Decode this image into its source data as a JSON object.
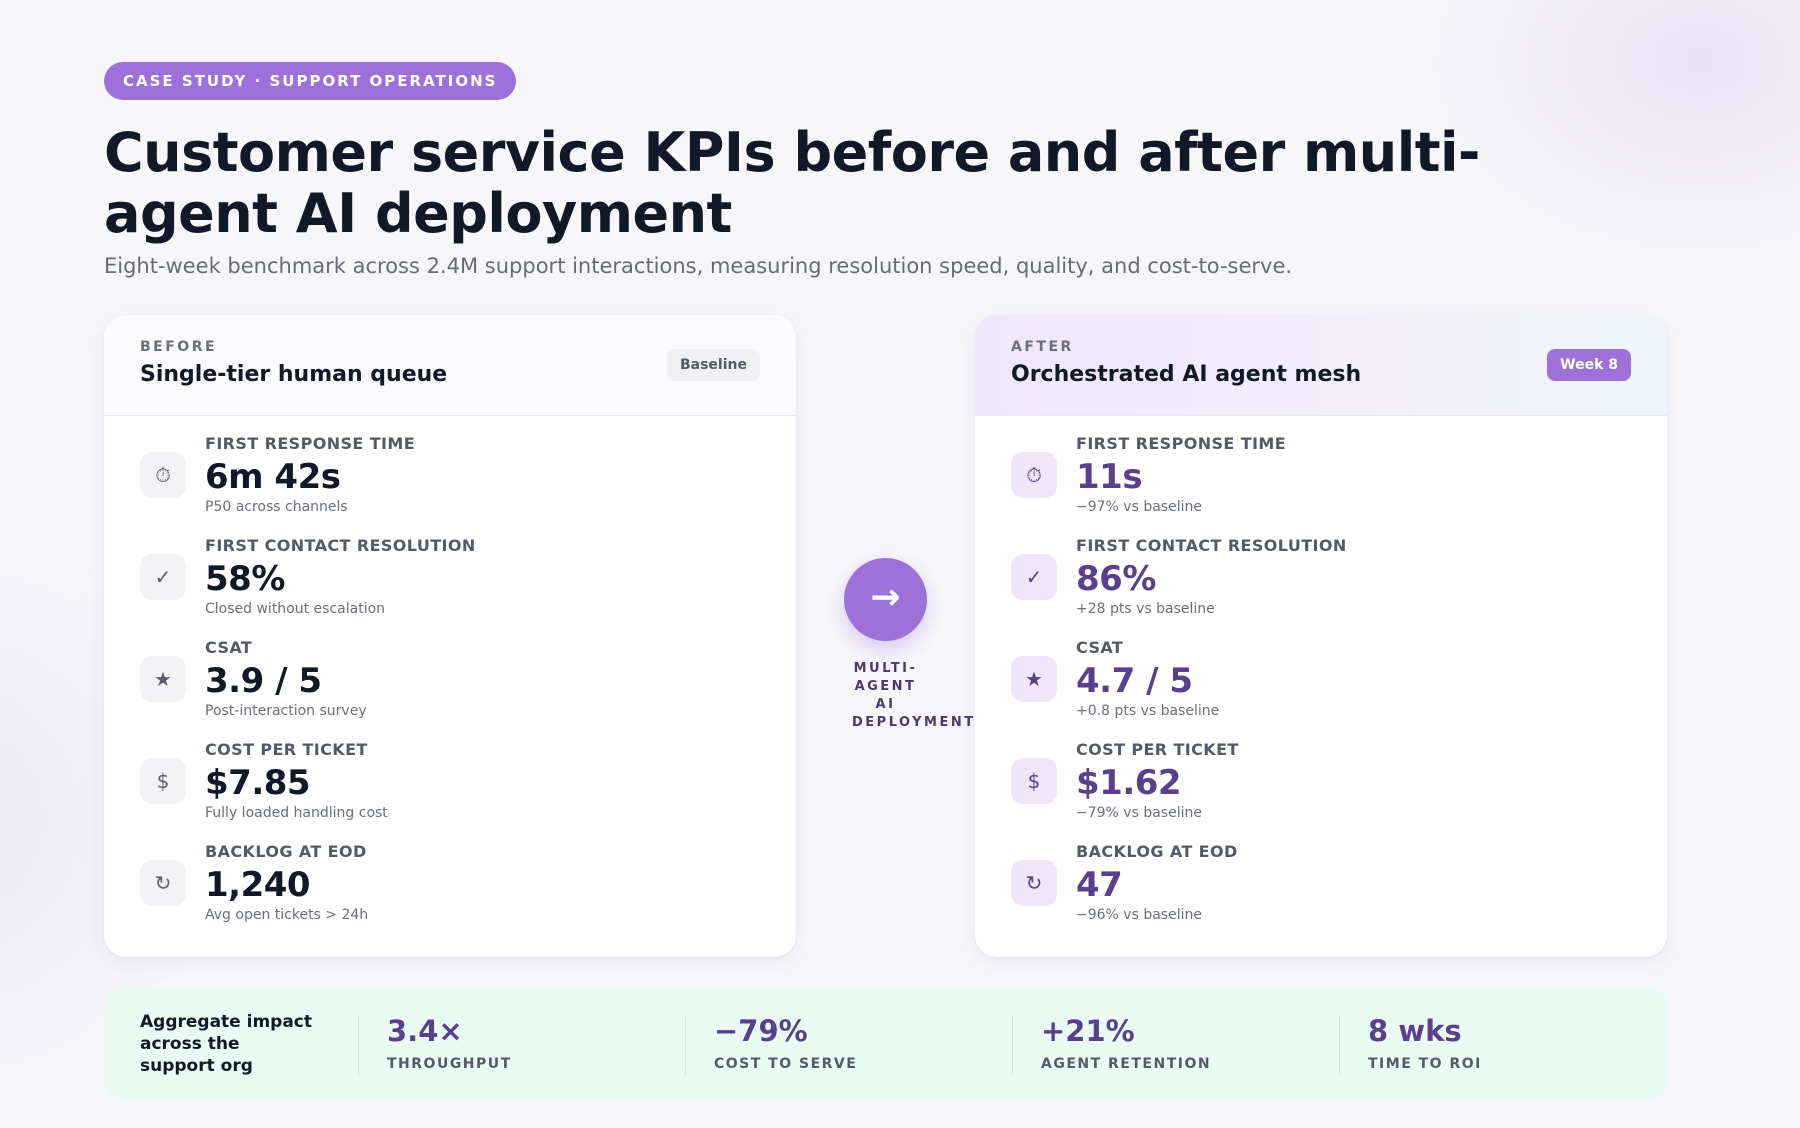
{
  "header": {
    "pill": "CASE STUDY · SUPPORT OPERATIONS",
    "title": "Customer service KPIs before and after multi-agent AI deployment",
    "subtitle": "Eight-week benchmark across 2.4M support interactions, measuring resolution speed, quality, and cost-to-serve."
  },
  "before": {
    "kicker": "BEFORE",
    "name": "Single-tier human queue",
    "tag": "Baseline",
    "metrics": [
      {
        "icon": "stopwatch-icon",
        "glyph": "⏱",
        "label": "FIRST RESPONSE TIME",
        "value": "6m 42s",
        "note": "P50 across channels"
      },
      {
        "icon": "check-icon",
        "glyph": "✓",
        "label": "FIRST CONTACT RESOLUTION",
        "value": "58%",
        "note": "Closed without escalation"
      },
      {
        "icon": "star-icon",
        "glyph": "★",
        "label": "CSAT",
        "value": "3.9 / 5",
        "note": "Post-interaction survey"
      },
      {
        "icon": "dollar-icon",
        "glyph": "$",
        "label": "COST PER TICKET",
        "value": "$7.85",
        "note": "Fully loaded handling cost"
      },
      {
        "icon": "refresh-icon",
        "glyph": "↻",
        "label": "BACKLOG AT EOD",
        "value": "1,240",
        "note": "Avg open tickets > 24h"
      }
    ]
  },
  "transition": {
    "arrow": "→",
    "label": "MULTI-AGENT AI DEPLOYMENT"
  },
  "after": {
    "kicker": "AFTER",
    "name": "Orchestrated AI agent mesh",
    "tag": "Week 8",
    "metrics": [
      {
        "icon": "stopwatch-icon",
        "glyph": "⏱",
        "label": "FIRST RESPONSE TIME",
        "value": "11s",
        "note": "−97% vs baseline"
      },
      {
        "icon": "check-icon",
        "glyph": "✓",
        "label": "FIRST CONTACT RESOLUTION",
        "value": "86%",
        "note": "+28 pts vs baseline"
      },
      {
        "icon": "star-icon",
        "glyph": "★",
        "label": "CSAT",
        "value": "4.7 / 5",
        "note": "+0.8 pts vs baseline"
      },
      {
        "icon": "dollar-icon",
        "glyph": "$",
        "label": "COST PER TICKET",
        "value": "$1.62",
        "note": "−79% vs baseline"
      },
      {
        "icon": "refresh-icon",
        "glyph": "↻",
        "label": "BACKLOG AT EOD",
        "value": "47",
        "note": "−96% vs baseline"
      }
    ]
  },
  "impact": {
    "lead": "Aggregate impact across the support org",
    "stats": [
      {
        "value": "3.4×",
        "label": "THROUGHPUT"
      },
      {
        "value": "−79%",
        "label": "COST TO SERVE"
      },
      {
        "value": "+21%",
        "label": "AGENT RETENTION"
      },
      {
        "value": "8 wks",
        "label": "TIME TO ROI"
      }
    ]
  },
  "colors": {
    "accent": "#9d71d9",
    "accent_dark": "#5a3f8c",
    "impact_bg": "#eafbf3",
    "title": "#111827"
  }
}
